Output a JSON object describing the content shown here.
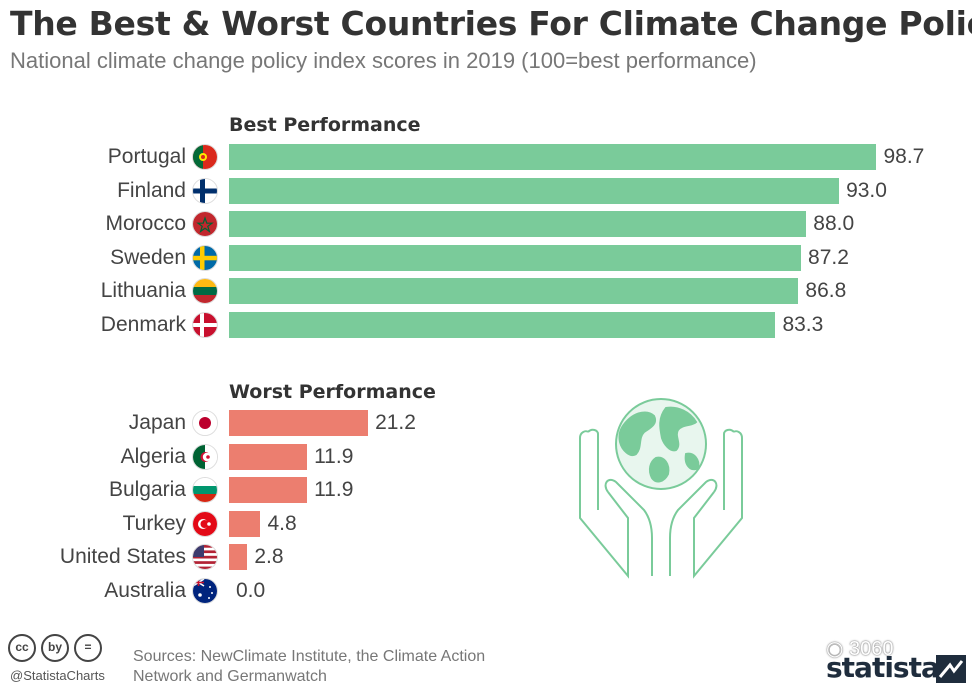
{
  "header": {
    "title": "The Best & Worst Countries For Climate Change Policy",
    "subtitle": "National climate change policy index scores in 2019 (100=best performance)"
  },
  "chart_data": {
    "type": "bar",
    "orientation": "horizontal",
    "title": "The Best & Worst Countries For Climate Change Policy",
    "subtitle": "National climate change policy index scores in 2019 (100=best performance)",
    "xlim": [
      0,
      100
    ],
    "groups": [
      {
        "name": "Best Performance",
        "color": "#7acb9a",
        "categories": [
          "Portugal",
          "Finland",
          "Morocco",
          "Sweden",
          "Lithuania",
          "Denmark"
        ],
        "values": [
          98.7,
          93.0,
          88.0,
          87.2,
          86.8,
          83.3
        ],
        "labels": [
          "98.7",
          "93.0",
          "88.0",
          "87.2",
          "86.8",
          "83.3"
        ],
        "flags": [
          "portugal-flag",
          "finland-flag",
          "morocco-flag",
          "sweden-flag",
          "lithuania-flag",
          "denmark-flag"
        ]
      },
      {
        "name": "Worst Performance",
        "color": "#ec7e6f",
        "categories": [
          "Japan",
          "Algeria",
          "Bulgaria",
          "Turkey",
          "United States",
          "Australia"
        ],
        "values": [
          21.2,
          11.9,
          11.9,
          4.8,
          2.8,
          0.0
        ],
        "labels": [
          "21.2",
          "11.9",
          "11.9",
          "4.8",
          "2.8",
          "0.0"
        ],
        "flags": [
          "japan-flag",
          "algeria-flag",
          "bulgaria-flag",
          "turkey-flag",
          "united-states-flag",
          "australia-flag"
        ]
      }
    ]
  },
  "footer": {
    "cc_icons": [
      "cc",
      "by",
      "="
    ],
    "handle": "@StatistaCharts",
    "source_line1": "Sources: NewClimate Institute, the Climate Action",
    "source_line2": "Network and Germanwatch",
    "watermark": "3060",
    "brand": "statista"
  },
  "illustration": {
    "name": "globe-in-hands-icon",
    "color": "#7acb9a"
  }
}
